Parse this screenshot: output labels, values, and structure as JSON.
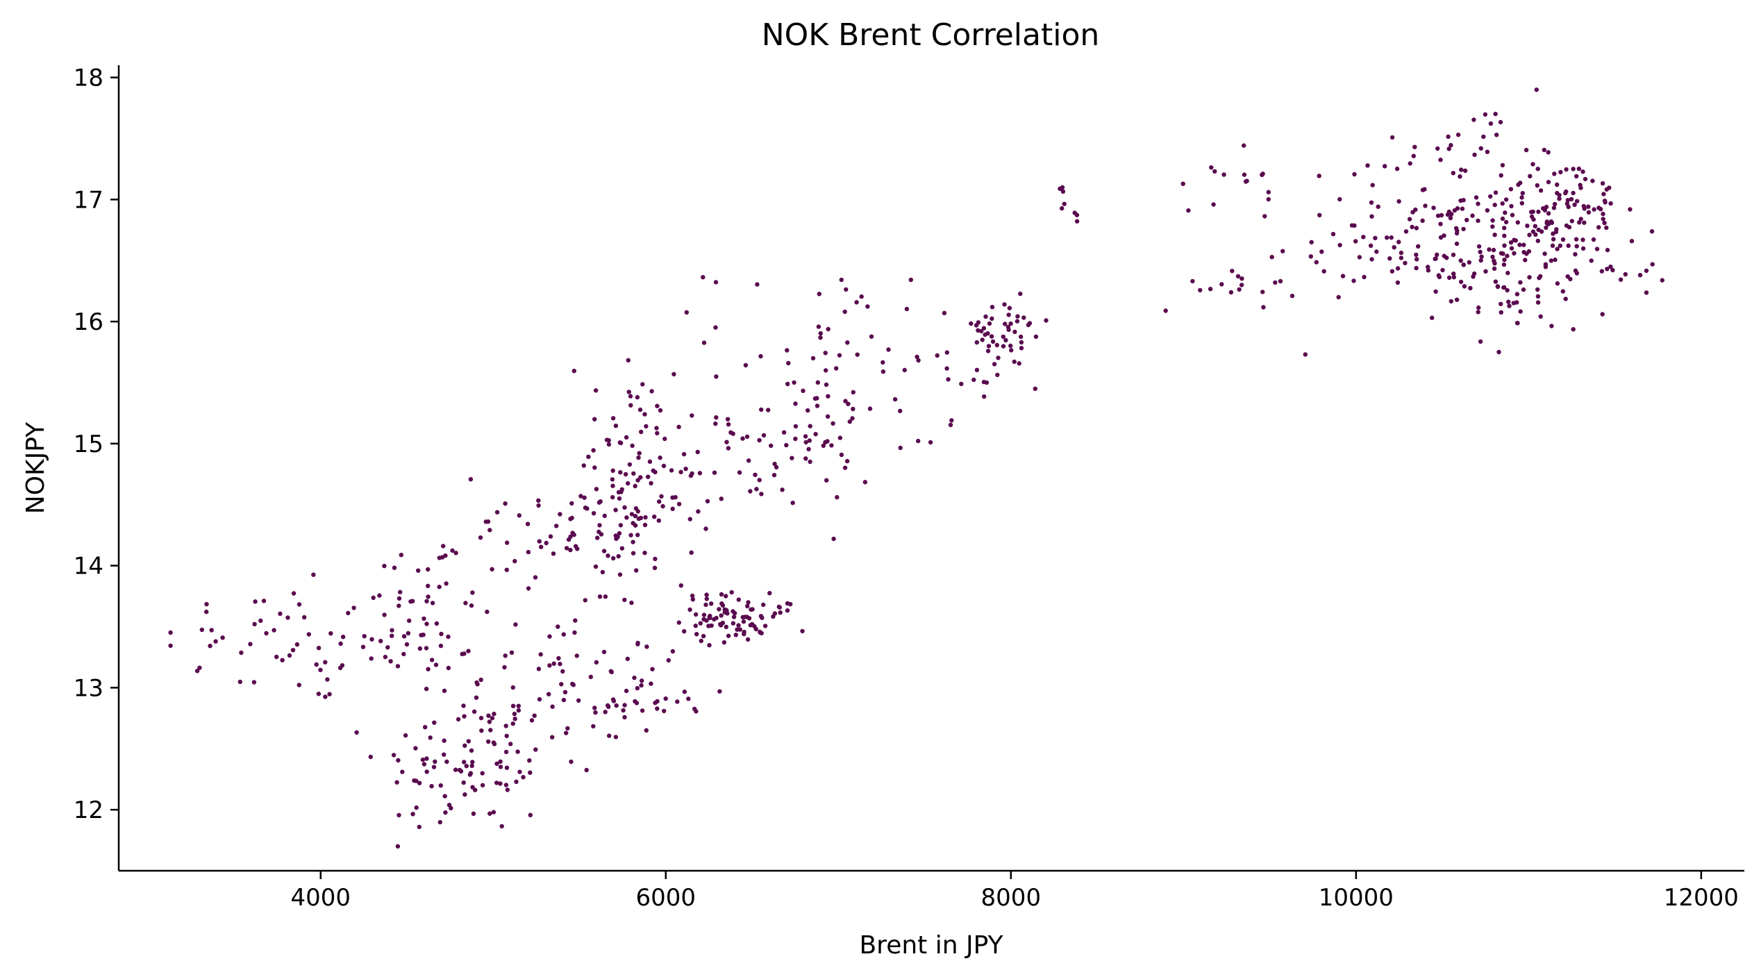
{
  "chart_data": {
    "type": "scatter",
    "title": "NOK Brent Correlation",
    "xlabel": "Brent in JPY",
    "ylabel": "NOKJPY",
    "xlim": [
      2830,
      12250
    ],
    "ylim": [
      11.5,
      18.1
    ],
    "x_ticks": [
      4000,
      6000,
      8000,
      10000,
      12000
    ],
    "y_ticks": [
      12,
      13,
      14,
      15,
      16,
      17,
      18
    ],
    "grid": false,
    "legend": "none",
    "marker_color": "#5a0a4f",
    "clusters": [
      {
        "cx": 3900,
        "cy": 13.35,
        "sx": 420,
        "sy": 0.25,
        "n": 55
      },
      {
        "cx": 4550,
        "cy": 13.55,
        "sx": 230,
        "sy": 0.33,
        "n": 50
      },
      {
        "cx": 4850,
        "cy": 12.35,
        "sx": 260,
        "sy": 0.28,
        "n": 85
      },
      {
        "cx": 5350,
        "cy": 12.95,
        "sx": 300,
        "sy": 0.33,
        "n": 75
      },
      {
        "cx": 6000,
        "cy": 12.85,
        "sx": 200,
        "sy": 0.12,
        "n": 15
      },
      {
        "cx": 5900,
        "cy": 13.2,
        "sx": 120,
        "sy": 0.2,
        "n": 10
      },
      {
        "cx": 6350,
        "cy": 13.58,
        "sx": 130,
        "sy": 0.1,
        "n": 70
      },
      {
        "cx": 6550,
        "cy": 13.55,
        "sx": 130,
        "sy": 0.1,
        "n": 15
      },
      {
        "cx": 4900,
        "cy": 14.15,
        "sx": 250,
        "sy": 0.22,
        "n": 20
      },
      {
        "cx": 5450,
        "cy": 14.3,
        "sx": 250,
        "sy": 0.17,
        "n": 30
      },
      {
        "cx": 5800,
        "cy": 14.3,
        "sx": 160,
        "sy": 0.22,
        "n": 50
      },
      {
        "cx": 5800,
        "cy": 14.85,
        "sx": 200,
        "sy": 0.42,
        "n": 55
      },
      {
        "cx": 6150,
        "cy": 14.9,
        "sx": 200,
        "sy": 0.32,
        "n": 30
      },
      {
        "cx": 6700,
        "cy": 15.0,
        "sx": 220,
        "sy": 0.25,
        "n": 45
      },
      {
        "cx": 7100,
        "cy": 15.3,
        "sx": 250,
        "sy": 0.28,
        "n": 30
      },
      {
        "cx": 6950,
        "cy": 15.9,
        "sx": 350,
        "sy": 0.28,
        "n": 35
      },
      {
        "cx": 7650,
        "cy": 15.45,
        "sx": 150,
        "sy": 0.22,
        "n": 15
      },
      {
        "cx": 7950,
        "cy": 15.9,
        "sx": 140,
        "sy": 0.15,
        "n": 45
      },
      {
        "cx": 8350,
        "cy": 16.95,
        "sx": 100,
        "sy": 0.08,
        "n": 8
      },
      {
        "cx": 9250,
        "cy": 16.3,
        "sx": 200,
        "sy": 0.1,
        "n": 15
      },
      {
        "cx": 9300,
        "cy": 17.2,
        "sx": 130,
        "sy": 0.15,
        "n": 12
      },
      {
        "cx": 9700,
        "cy": 16.7,
        "sx": 200,
        "sy": 0.15,
        "n": 10
      },
      {
        "cx": 10100,
        "cy": 16.5,
        "sx": 250,
        "sy": 0.35,
        "n": 30
      },
      {
        "cx": 10550,
        "cy": 16.8,
        "sx": 300,
        "sy": 0.4,
        "n": 90
      },
      {
        "cx": 10900,
        "cy": 16.5,
        "sx": 250,
        "sy": 0.3,
        "n": 100
      },
      {
        "cx": 11200,
        "cy": 16.95,
        "sx": 180,
        "sy": 0.22,
        "n": 80
      },
      {
        "cx": 11450,
        "cy": 16.6,
        "sx": 200,
        "sy": 0.3,
        "n": 30
      },
      {
        "cx": 10700,
        "cy": 17.5,
        "sx": 150,
        "sy": 0.12,
        "n": 15
      }
    ]
  }
}
